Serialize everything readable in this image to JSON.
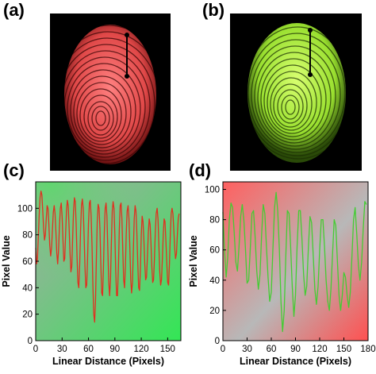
{
  "panels": {
    "a": {
      "letter": "(a)",
      "ridge_color": "#ff6a6a"
    },
    "b": {
      "letter": "(b)",
      "ridge_color": "#b8ff4a"
    }
  },
  "chart_data": [
    {
      "panel": "(c)",
      "type": "line",
      "xlabel": "Linear Distance (Pixels)",
      "ylabel": "Pixel Value",
      "xlim": [
        0,
        165
      ],
      "ylim": [
        0,
        120
      ],
      "xticks": [
        0,
        30,
        60,
        90,
        120,
        150
      ],
      "yticks": [
        0,
        20,
        40,
        60,
        80,
        100
      ],
      "line_color": "#e03020",
      "background": {
        "from": "#a8a8a8",
        "to": "#33e655",
        "direction": "to bottom right",
        "top_left_tint": "#55dd66"
      },
      "grid": false,
      "x": [
        0,
        1,
        2,
        3,
        4,
        5,
        6,
        7,
        8,
        9,
        10,
        11,
        12,
        13,
        14,
        15,
        16,
        17,
        18,
        19,
        20,
        21,
        22,
        23,
        24,
        25,
        26,
        27,
        28,
        29,
        30,
        31,
        32,
        33,
        34,
        35,
        36,
        37,
        38,
        39,
        40,
        41,
        42,
        43,
        44,
        45,
        46,
        47,
        48,
        49,
        50,
        51,
        52,
        53,
        54,
        55,
        56,
        57,
        58,
        59,
        60,
        61,
        62,
        63,
        64,
        65,
        66,
        67,
        68,
        69,
        70,
        71,
        72,
        73,
        74,
        75,
        76,
        77,
        78,
        79,
        80,
        81,
        82,
        83,
        84,
        85,
        86,
        87,
        88,
        89,
        90,
        91,
        92,
        93,
        94,
        95,
        96,
        97,
        98,
        99,
        100,
        101,
        102,
        103,
        104,
        105,
        106,
        107,
        108,
        109,
        110,
        111,
        112,
        113,
        114,
        115,
        116,
        117,
        118,
        119,
        120,
        121,
        122,
        123,
        124,
        125,
        126,
        127,
        128,
        129,
        130,
        131,
        132,
        133,
        134,
        135,
        136,
        137,
        138,
        139,
        140,
        141,
        142,
        143,
        144,
        145,
        146,
        147,
        148,
        149,
        150,
        151,
        152,
        153,
        154,
        155,
        156,
        157,
        158,
        159,
        160,
        161,
        162,
        163
      ],
      "values": [
        70,
        58,
        62,
        78,
        95,
        108,
        113,
        110,
        98,
        85,
        76,
        80,
        92,
        102,
        100,
        88,
        72,
        64,
        70,
        84,
        97,
        102,
        96,
        82,
        66,
        58,
        68,
        86,
        100,
        104,
        94,
        76,
        60,
        62,
        80,
        98,
        106,
        102,
        86,
        66,
        52,
        56,
        78,
        98,
        108,
        105,
        88,
        64,
        44,
        40,
        58,
        84,
        102,
        107,
        100,
        80,
        56,
        40,
        42,
        62,
        88,
        104,
        106,
        94,
        72,
        42,
        20,
        14,
        30,
        62,
        90,
        103,
        100,
        84,
        58,
        36,
        34,
        55,
        82,
        100,
        104,
        94,
        70,
        44,
        34,
        46,
        74,
        98,
        105,
        100,
        80,
        52,
        34,
        34,
        56,
        84,
        102,
        104,
        92,
        68,
        46,
        40,
        56,
        82,
        98,
        102,
        92,
        70,
        46,
        36,
        44,
        68,
        92,
        102,
        98,
        82,
        58,
        40,
        38,
        54,
        80,
        94,
        90,
        76,
        58,
        46,
        48,
        64,
        82,
        92,
        88,
        74,
        56,
        44,
        46,
        62,
        82,
        96,
        100,
        92,
        72,
        52,
        42,
        46,
        62,
        80,
        92,
        90,
        76,
        58,
        44,
        42,
        58,
        80,
        96,
        100,
        96,
        84,
        70,
        62,
        66,
        80,
        92,
        96
      ]
    },
    {
      "panel": "(d)",
      "type": "line",
      "xlabel": "Linear Distance (Pixels)",
      "ylabel": "Pixel Value",
      "xlim": [
        0,
        180
      ],
      "ylim": [
        0,
        105
      ],
      "xticks": [
        0,
        30,
        60,
        90,
        120,
        150,
        180
      ],
      "yticks": [
        0,
        20,
        40,
        60,
        80,
        100
      ],
      "line_color": "#44cc33",
      "background": {
        "from": "#ff6060",
        "to": "#b8b8b8",
        "direction": "to bottom right",
        "bottom_right_tint": "#ff5050"
      },
      "grid": false,
      "x": [
        0,
        2,
        4,
        6,
        8,
        10,
        12,
        14,
        16,
        18,
        20,
        22,
        24,
        26,
        28,
        30,
        32,
        34,
        36,
        38,
        40,
        42,
        44,
        46,
        48,
        50,
        52,
        54,
        56,
        58,
        60,
        62,
        64,
        66,
        68,
        70,
        72,
        74,
        76,
        78,
        80,
        82,
        84,
        86,
        88,
        90,
        92,
        94,
        96,
        98,
        100,
        102,
        104,
        106,
        108,
        110,
        112,
        114,
        116,
        118,
        120,
        122,
        124,
        126,
        128,
        130,
        132,
        134,
        136,
        138,
        140,
        142,
        144,
        146,
        148,
        150,
        152,
        154,
        156,
        158,
        160,
        162,
        164,
        166,
        168,
        170,
        172,
        174,
        176,
        178
      ],
      "values": [
        85,
        60,
        42,
        55,
        80,
        91,
        88,
        72,
        52,
        46,
        62,
        82,
        90,
        80,
        60,
        38,
        40,
        62,
        84,
        86,
        68,
        46,
        34,
        44,
        70,
        90,
        84,
        62,
        42,
        26,
        32,
        60,
        88,
        98,
        86,
        60,
        26,
        6,
        20,
        56,
        86,
        84,
        62,
        36,
        16,
        30,
        62,
        86,
        86,
        68,
        44,
        30,
        36,
        62,
        82,
        78,
        56,
        34,
        24,
        36,
        60,
        80,
        80,
        62,
        40,
        26,
        20,
        34,
        58,
        80,
        76,
        52,
        30,
        20,
        30,
        45,
        42,
        30,
        22,
        32,
        56,
        80,
        88,
        70,
        50,
        40,
        52,
        74,
        92,
        90
      ]
    }
  ]
}
